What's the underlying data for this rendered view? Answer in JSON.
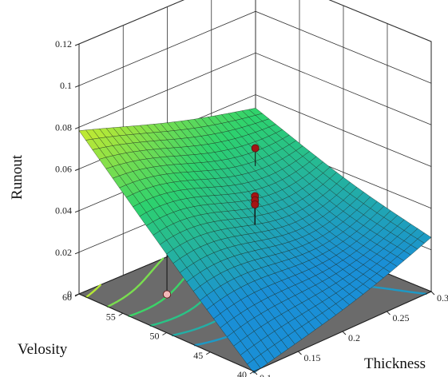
{
  "chart_data": {
    "type": "surface3d",
    "title": "",
    "zlabel": "Runout",
    "xlabel": "Thickness",
    "ylabel": "Velosity",
    "x_ticks": [
      "0.1",
      "0.15",
      "0.2",
      "0.25",
      "0.3"
    ],
    "y_ticks": [
      "40",
      "45",
      "50",
      "55",
      "60"
    ],
    "z_ticks": [
      "0",
      "0.02",
      "0.04",
      "0.06",
      "0.08",
      "0.1",
      "0.12"
    ],
    "xlim": [
      0.1,
      0.3
    ],
    "ylim": [
      40,
      60
    ],
    "zlim": [
      0,
      0.12
    ],
    "surface_corners": [
      {
        "thickness": 0.1,
        "velosity": 60,
        "runout": 0.079
      },
      {
        "thickness": 0.1,
        "velosity": 40,
        "runout": 0.0
      },
      {
        "thickness": 0.3,
        "velosity": 40,
        "runout": 0.028
      },
      {
        "thickness": 0.3,
        "velosity": 60,
        "runout": 0.055
      }
    ],
    "surface_minimum": {
      "thickness": 0.22,
      "velosity": 49,
      "runout": 0.03
    },
    "design_points": [
      {
        "thickness": 0.2,
        "velosity": 50,
        "runout": 0.047,
        "position": "above"
      },
      {
        "thickness": 0.2,
        "velosity": 50,
        "runout": 0.045,
        "position": "above"
      },
      {
        "thickness": 0.2,
        "velosity": 50,
        "runout": 0.043,
        "position": "above"
      },
      {
        "thickness": 0.25,
        "velosity": 55,
        "runout": 0.052,
        "position": "above"
      },
      {
        "thickness": 0.25,
        "velosity": 45,
        "runout": 0.014,
        "position": "below"
      },
      {
        "thickness": 0.15,
        "velosity": 55,
        "runout": 0.0,
        "position": "below"
      }
    ],
    "colors": {
      "surface_low": "#1a8fd6",
      "surface_mid": "#2dd26e",
      "surface_high": "#f3f21e",
      "floor": "#6b6b6b",
      "point_above": "#a51414",
      "point_below": "#f2b8b8"
    }
  }
}
